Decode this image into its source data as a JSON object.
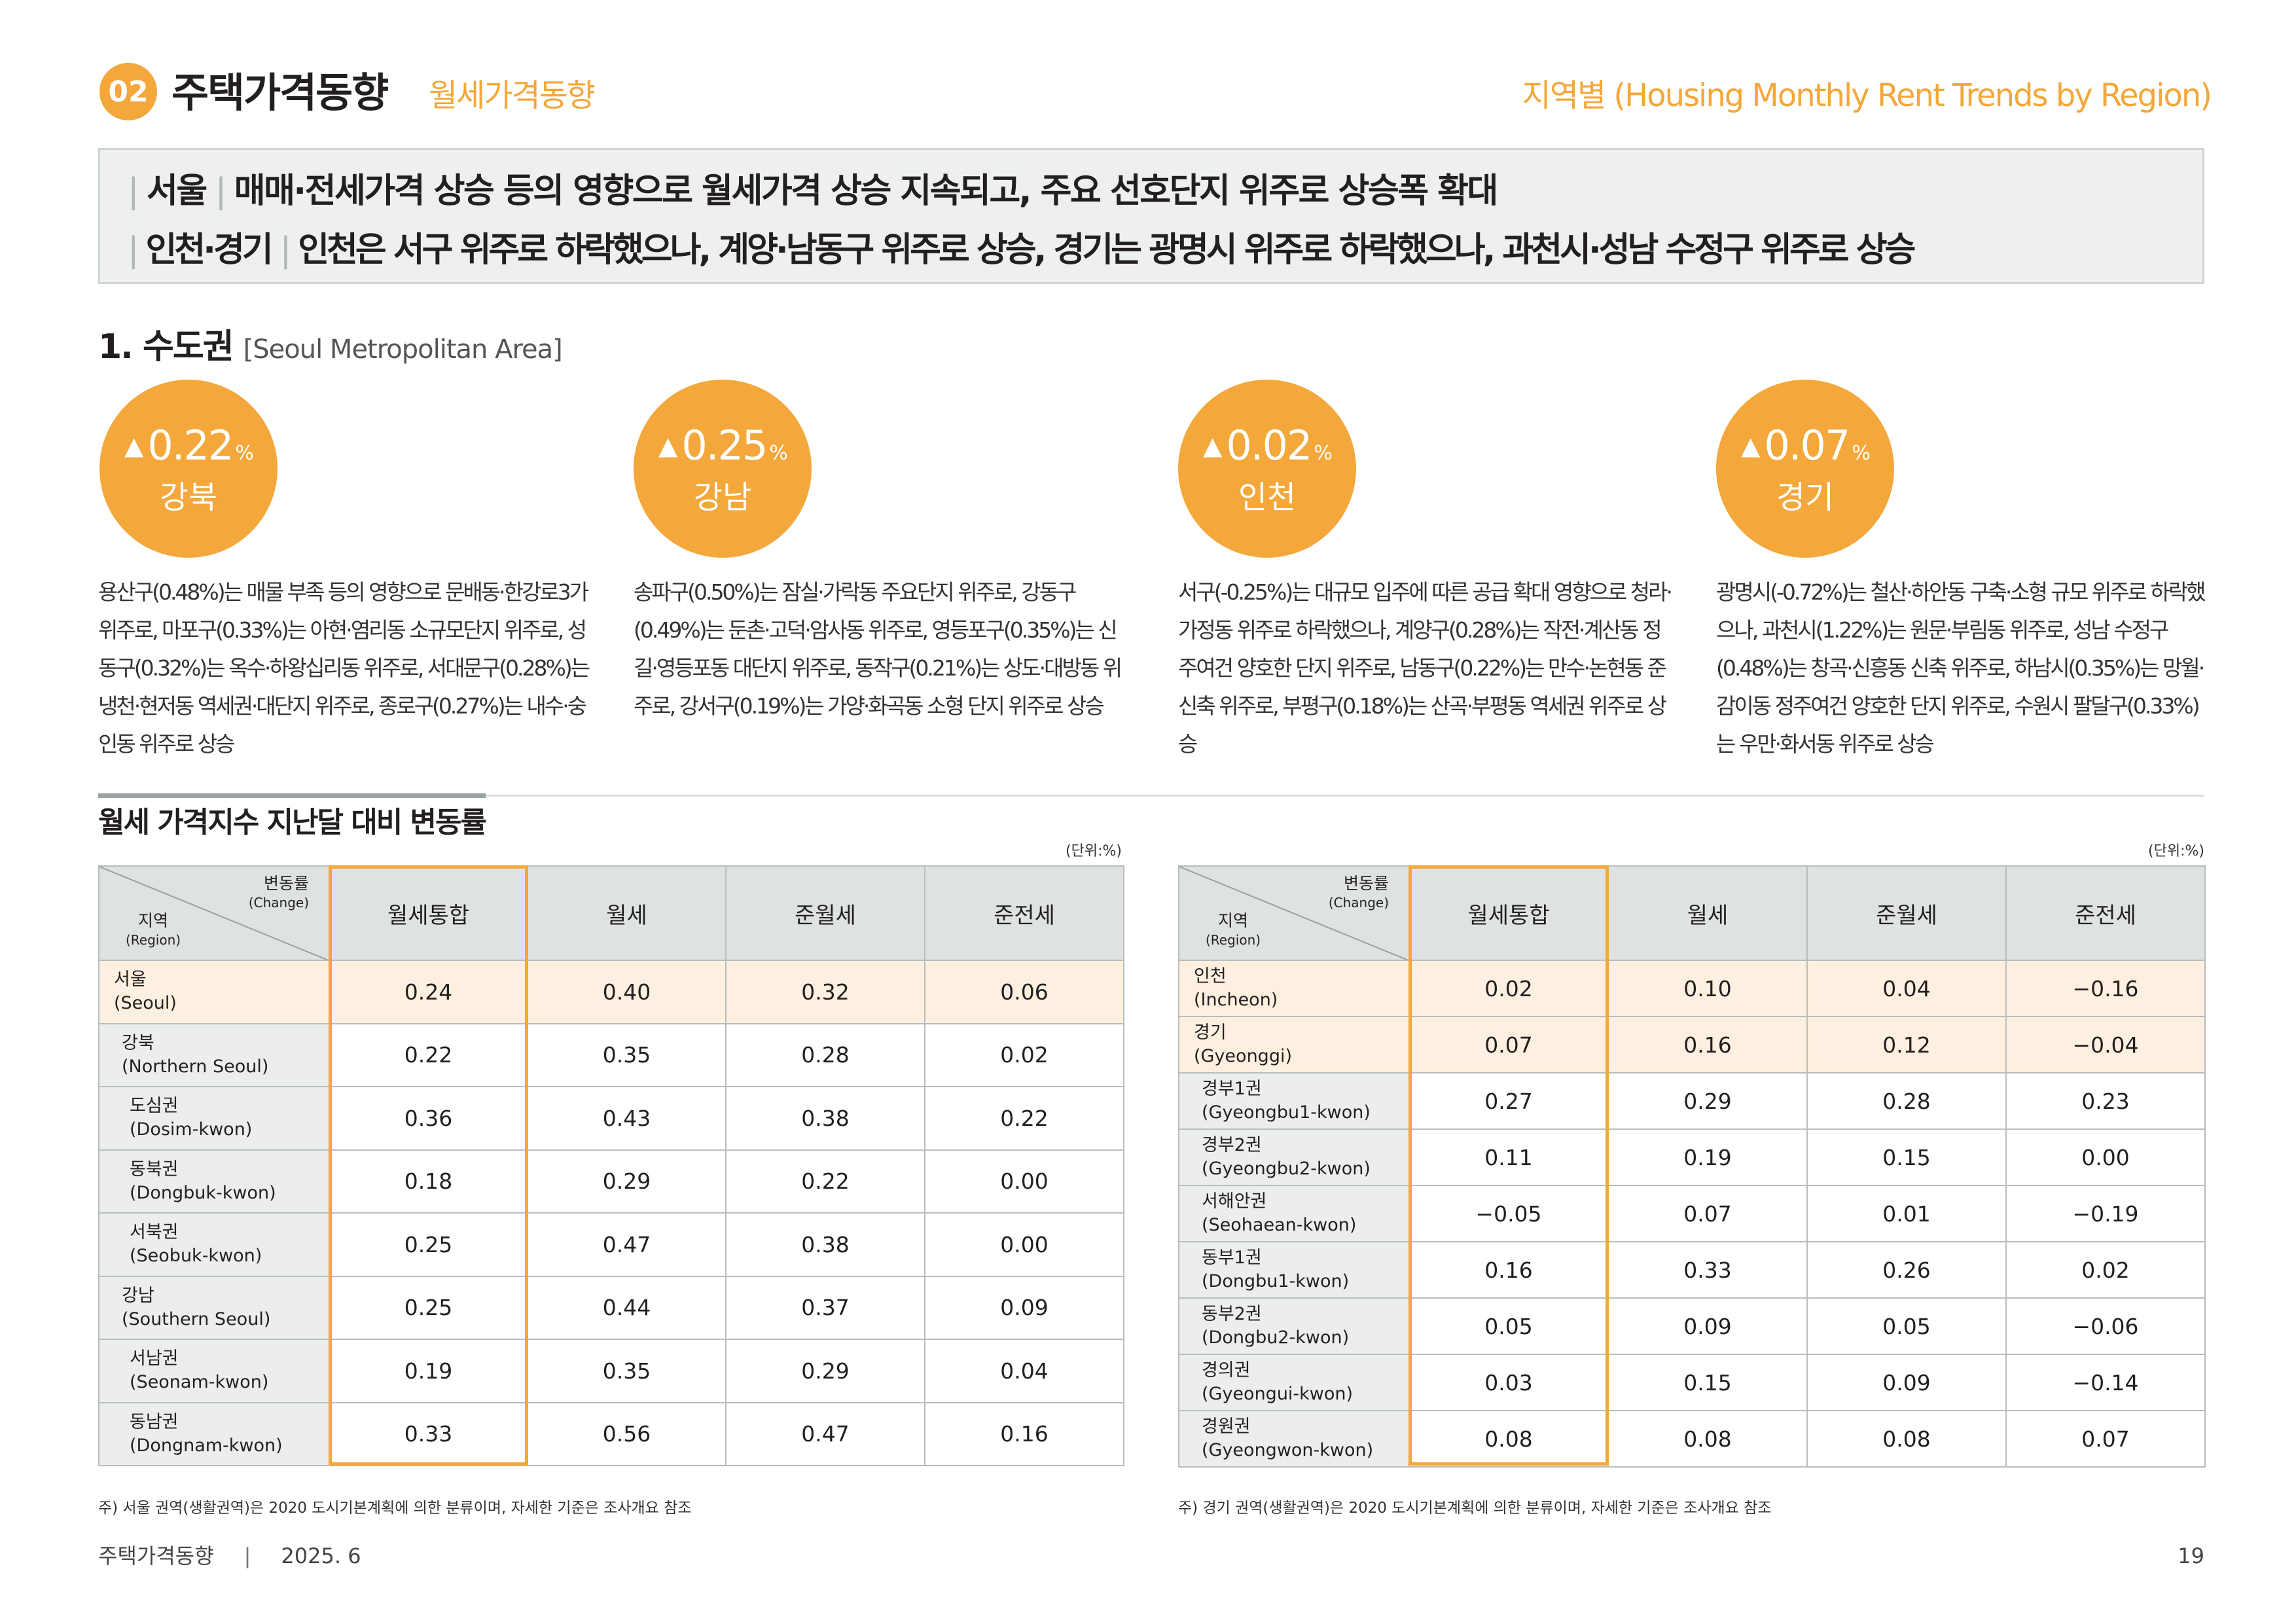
{
  "header": {
    "badge": "02",
    "title": "주택가격동향",
    "subtitle": "월세가격동향",
    "right_title": "지역별 (Housing Monthly Rent Trends by Region)"
  },
  "summary": {
    "line1_region": "서울",
    "line1_text": "매매·전세가격 상승 등의 영향으로 월세가격 상승 지속되고, 주요 선호단지 위주로 상승폭 확대",
    "line2_region": "인천·경기",
    "line2_text": "인천은 서구 위주로 하락했으나, 계양·남동구 위주로 상승, 경기는 광명시 위주로 하락했으나, 과천시·성남 수정구 위주로 상승"
  },
  "section": {
    "title": "1. 수도권",
    "title_en": "[Seoul Metropolitan Area]"
  },
  "indicators": [
    {
      "arrow": "▲",
      "value": "0.22",
      "unit": "%",
      "name": "강북",
      "desc": "용산구(0.48%)는 매물 부족 등의 영향으로 문배동·한강로3가 위주로, 마포구(0.33%)는 아현·염리동 소규모단지 위주로, 성동구(0.32%)는 옥수·하왕십리동 위주로, 서대문구(0.28%)는 냉천·현저동 역세권·대단지 위주로, 종로구(0.27%)는 내수·숭인동 위주로 상승"
    },
    {
      "arrow": "▲",
      "value": "0.25",
      "unit": "%",
      "name": "강남",
      "desc": "송파구(0.50%)는 잠실·가락동 주요단지 위주로, 강동구(0.49%)는 둔촌·고덕·암사동 위주로, 영등포구(0.35%)는 신길·영등포동 대단지 위주로, 동작구(0.21%)는 상도·대방동 위주로, 강서구(0.19%)는 가양·화곡동 소형 단지 위주로 상승"
    },
    {
      "arrow": "▲",
      "value": "0.02",
      "unit": "%",
      "name": "인천",
      "desc": "서구(-0.25%)는 대규모 입주에 따른 공급 확대 영향으로 청라·가정동 위주로 하락했으나, 계양구(0.28%)는 작전·계산동 정주여건 양호한 단지 위주로, 남동구(0.22%)는 만수·논현동 준신축 위주로, 부평구(0.18%)는 산곡·부평동 역세권 위주로 상승"
    },
    {
      "arrow": "▲",
      "value": "0.07",
      "unit": "%",
      "name": "경기",
      "desc": "광명시(-0.72%)는 철산·하안동 구축·소형 규모 위주로 하락했으나, 과천시(1.22%)는 원문·부림동 위주로, 성남 수정구(0.48%)는 창곡·신흥동 신축 위주로, 하남시(0.35%)는 망월·감이동 정주여건 양호한 단지 위주로, 수원시 팔달구(0.33%)는 우만·화서동 위주로 상승"
    }
  ],
  "table_section": {
    "title": "월세 가격지수 지난달 대비 변동률",
    "unit_left": "(단위:%)",
    "unit_right": "(단위:%)",
    "corner_top": "변동률",
    "corner_top_en": "(Change)",
    "corner_bottom": "지역",
    "corner_bottom_en": "(Region)",
    "columns": [
      "월세통합",
      "월세",
      "준월세",
      "준전세"
    ]
  },
  "table_left": {
    "rows": [
      {
        "name": "서울",
        "name_en": "(Seoul)",
        "level": 0,
        "hl": true,
        "values": [
          "0.24",
          "0.40",
          "0.32",
          "0.06"
        ]
      },
      {
        "name": "강북",
        "name_en": "(Northern Seoul)",
        "level": 1,
        "hl": false,
        "values": [
          "0.22",
          "0.35",
          "0.28",
          "0.02"
        ]
      },
      {
        "name": "도심권",
        "name_en": "(Dosim-kwon)",
        "level": 2,
        "hl": false,
        "values": [
          "0.36",
          "0.43",
          "0.38",
          "0.22"
        ]
      },
      {
        "name": "동북권",
        "name_en": "(Dongbuk-kwon)",
        "level": 2,
        "hl": false,
        "values": [
          "0.18",
          "0.29",
          "0.22",
          "0.00"
        ]
      },
      {
        "name": "서북권",
        "name_en": "(Seobuk-kwon)",
        "level": 2,
        "hl": false,
        "values": [
          "0.25",
          "0.47",
          "0.38",
          "0.00"
        ]
      },
      {
        "name": "강남",
        "name_en": "(Southern Seoul)",
        "level": 1,
        "hl": false,
        "values": [
          "0.25",
          "0.44",
          "0.37",
          "0.09"
        ]
      },
      {
        "name": "서남권",
        "name_en": "(Seonam-kwon)",
        "level": 2,
        "hl": false,
        "values": [
          "0.19",
          "0.35",
          "0.29",
          "0.04"
        ]
      },
      {
        "name": "동남권",
        "name_en": "(Dongnam-kwon)",
        "level": 2,
        "hl": false,
        "values": [
          "0.33",
          "0.56",
          "0.47",
          "0.16"
        ]
      }
    ],
    "note": "주) 서울 권역(생활권역)은 2020 도시기본계획에 의한 분류이며, 자세한 기준은 조사개요 참조"
  },
  "table_right": {
    "rows": [
      {
        "name": "인천",
        "name_en": "(Incheon)",
        "level": 0,
        "hl": true,
        "values": [
          "0.02",
          "0.10",
          "0.04",
          "−0.16"
        ]
      },
      {
        "name": "경기",
        "name_en": "(Gyeonggi)",
        "level": 0,
        "hl": true,
        "values": [
          "0.07",
          "0.16",
          "0.12",
          "−0.04"
        ]
      },
      {
        "name": "경부1권",
        "name_en": "(Gyeongbu1-kwon)",
        "level": 1,
        "hl": false,
        "values": [
          "0.27",
          "0.29",
          "0.28",
          "0.23"
        ]
      },
      {
        "name": "경부2권",
        "name_en": "(Gyeongbu2-kwon)",
        "level": 1,
        "hl": false,
        "values": [
          "0.11",
          "0.19",
          "0.15",
          "0.00"
        ]
      },
      {
        "name": "서해안권",
        "name_en": "(Seohaean-kwon)",
        "level": 1,
        "hl": false,
        "values": [
          "−0.05",
          "0.07",
          "0.01",
          "−0.19"
        ]
      },
      {
        "name": "동부1권",
        "name_en": "(Dongbu1-kwon)",
        "level": 1,
        "hl": false,
        "values": [
          "0.16",
          "0.33",
          "0.26",
          "0.02"
        ]
      },
      {
        "name": "동부2권",
        "name_en": "(Dongbu2-kwon)",
        "level": 1,
        "hl": false,
        "values": [
          "0.05",
          "0.09",
          "0.05",
          "−0.06"
        ]
      },
      {
        "name": "경의권",
        "name_en": "(Gyeongui-kwon)",
        "level": 1,
        "hl": false,
        "values": [
          "0.03",
          "0.15",
          "0.09",
          "−0.14"
        ]
      },
      {
        "name": "경원권",
        "name_en": "(Gyeongwon-kwon)",
        "level": 1,
        "hl": false,
        "values": [
          "0.08",
          "0.08",
          "0.08",
          "0.07"
        ]
      }
    ],
    "note": "주) 경기 권역(생활권역)은 2020 도시기본계획에 의한 분류이며, 자세한 기준은 조사개요 참조"
  },
  "footer": {
    "publication": "주택가격동향",
    "separator": "|",
    "date": "2025. 6",
    "page": "19"
  },
  "colors": {
    "accent": "#f4a73a",
    "highlight_row": "#fdf0e0",
    "header_bg": "#dfe2e2",
    "summary_bg": "#eef0f0"
  }
}
